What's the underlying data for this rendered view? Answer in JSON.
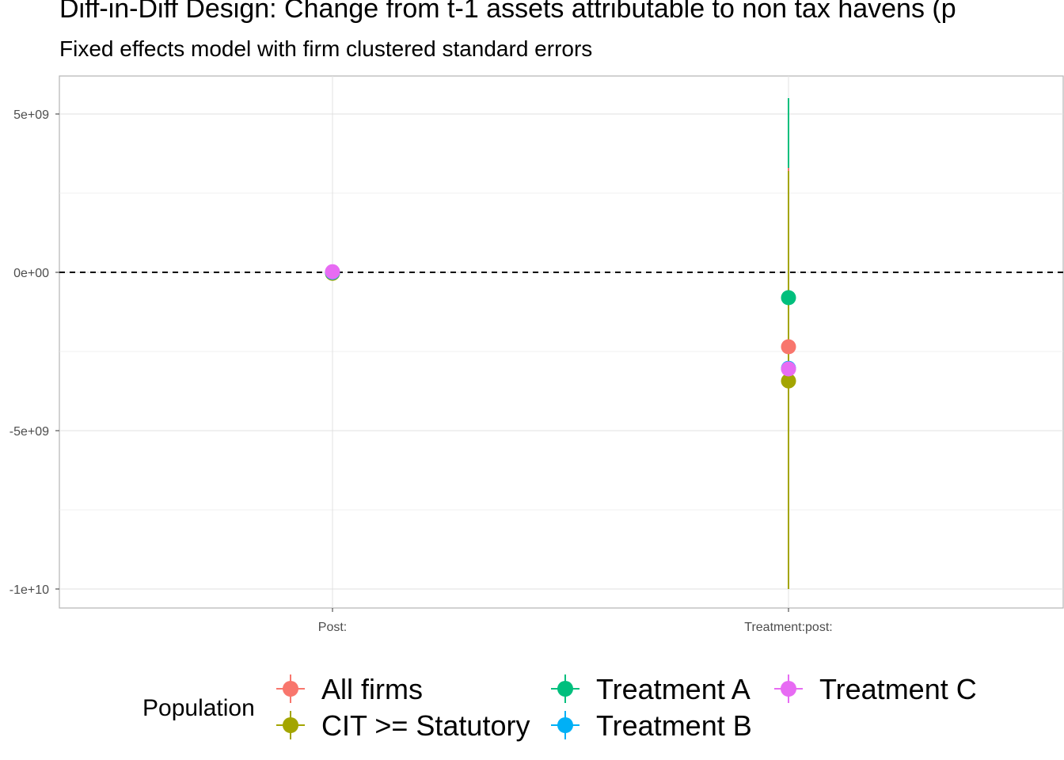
{
  "chart_data": {
    "type": "scatter",
    "title": "Diff-in-Diff Design: Change from t-1 assets attributable to non tax havens (p",
    "subtitle": "Fixed effects model with firm clustered standard errors",
    "xlabel": "",
    "ylabel": "",
    "categories": [
      "Post:",
      "Treatment:post:"
    ],
    "ylim": [
      -10600000000,
      6200000000
    ],
    "y_ticks": [
      -10000000000,
      -5000000000,
      0,
      5000000000
    ],
    "y_tick_labels": [
      "-1e+10",
      "-5e+09",
      "0e+00",
      "5e+09"
    ],
    "reference_line": {
      "y": 0,
      "style": "dashed"
    },
    "grid": true,
    "legend": {
      "title": "Population",
      "placement": "bottom"
    },
    "series": [
      {
        "name": "All firms",
        "color": "#F8766D",
        "points": [
          {
            "x": "Post:",
            "y": 0,
            "lo": 0,
            "hi": 0
          },
          {
            "x": "Treatment:post:",
            "y": -2350000000,
            "lo": -10000000000,
            "hi": 3300000000
          }
        ]
      },
      {
        "name": "CIT >= Statutory",
        "color": "#A3A500",
        "points": [
          {
            "x": "Post:",
            "y": -30000000,
            "lo": -30000000,
            "hi": -30000000
          },
          {
            "x": "Treatment:post:",
            "y": -3430000000,
            "lo": -10000000000,
            "hi": 3200000000
          }
        ]
      },
      {
        "name": "Treatment A",
        "color": "#00BF7D",
        "points": [
          {
            "x": "Post:",
            "y": 0,
            "lo": 0,
            "hi": 0
          },
          {
            "x": "Treatment:post:",
            "y": -800000000,
            "lo": -6500000000,
            "hi": 5500000000
          }
        ]
      },
      {
        "name": "Treatment B",
        "color": "#00B0F6",
        "points": [
          {
            "x": "Post:",
            "y": 0,
            "lo": 0,
            "hi": 0
          },
          {
            "x": "Treatment:post:",
            "y": -3030000000,
            "lo": -9000000000,
            "hi": 3100000000
          }
        ]
      },
      {
        "name": "Treatment C",
        "color": "#E76BF3",
        "points": [
          {
            "x": "Post:",
            "y": 20000000,
            "lo": 20000000,
            "hi": 20000000
          },
          {
            "x": "Treatment:post:",
            "y": -3050000000,
            "lo": -9400000000,
            "hi": 3300000000
          }
        ]
      }
    ]
  }
}
